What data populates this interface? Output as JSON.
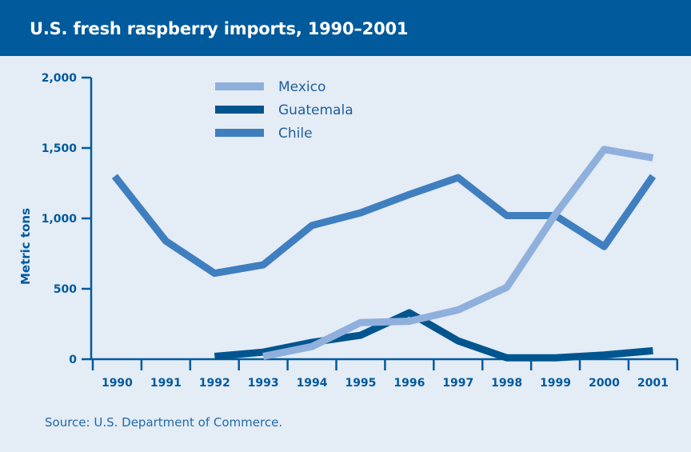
{
  "source": "Source:  U.S. Department of Commerce.",
  "colors": {
    "title_bar": "#005a9c",
    "background": "#e4ecf6",
    "axis": "#005a9c",
    "mexico": "#8fb0dc",
    "guatemala": "#00558f",
    "chile": "#3f7fbf"
  },
  "chart_data": {
    "type": "line",
    "title": "U.S. fresh raspberry imports, 1990–2001",
    "ylabel": "Metric tons",
    "xlabel": "",
    "ylim": [
      0,
      2000
    ],
    "yticks": [
      0,
      500,
      1000,
      1500,
      2000
    ],
    "ytick_labels": [
      "0",
      "500",
      "1,000",
      "1,500",
      "2,000"
    ],
    "categories": [
      "1990",
      "1991",
      "1992",
      "1993",
      "1994",
      "1995",
      "1996",
      "1997",
      "1998",
      "1999",
      "2000",
      "2001"
    ],
    "legend_position": "top-center",
    "grid": false,
    "series": [
      {
        "name": "Mexico",
        "color": "#8fb0dc",
        "values": [
          null,
          null,
          null,
          20,
          90,
          260,
          270,
          350,
          510,
          1030,
          1490,
          1430
        ]
      },
      {
        "name": "Guatemala",
        "color": "#00558f",
        "values": [
          null,
          null,
          20,
          50,
          120,
          170,
          330,
          130,
          10,
          10,
          30,
          60
        ]
      },
      {
        "name": "Chile",
        "color": "#3f7fbf",
        "values": [
          1300,
          840,
          610,
          670,
          950,
          1040,
          1170,
          1290,
          1020,
          1020,
          800,
          1300
        ]
      }
    ]
  }
}
